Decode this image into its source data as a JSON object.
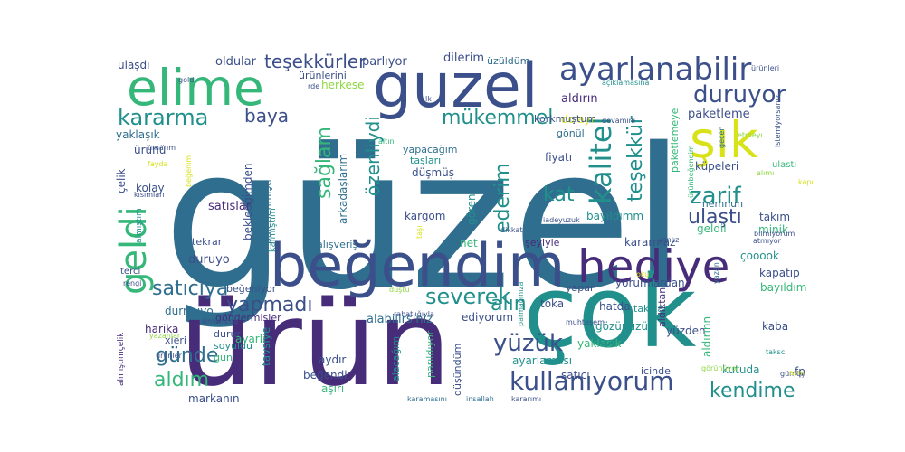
{
  "palette": {
    "dark_purple": "#472c7a",
    "indigo": "#3b4f8a",
    "steel_blue": "#2f6e8e",
    "teal": "#21908c",
    "green": "#35b779",
    "lime": "#8fd744",
    "yellow": "#d8e219",
    "background": "#ffffff"
  },
  "words": [
    {
      "text": "güzel"
    },
    {
      "text": "ürün"
    },
    {
      "text": "çok"
    },
    {
      "text": "beğendim"
    },
    {
      "text": "guzel"
    },
    {
      "text": "elime"
    },
    {
      "text": "şık"
    },
    {
      "text": "hediye"
    },
    {
      "text": "ayarlanabilir"
    },
    {
      "text": "geldi"
    },
    {
      "text": "kalitel"
    },
    {
      "text": "yüzük"
    },
    {
      "text": "kullanıyorum"
    },
    {
      "text": "duruyor"
    },
    {
      "text": "kararma"
    },
    {
      "text": "mükemmel"
    },
    {
      "text": "zarif"
    },
    {
      "text": "severek"
    },
    {
      "text": "teşekkürler"
    },
    {
      "text": "teşekkür"
    },
    {
      "text": "özenliydi"
    },
    {
      "text": "sağlam"
    },
    {
      "text": "ulaştı"
    },
    {
      "text": "satıcıya"
    },
    {
      "text": "yapmadı"
    },
    {
      "text": "günde"
    },
    {
      "text": "aldım"
    },
    {
      "text": "kendime"
    },
    {
      "text": "alın"
    },
    {
      "text": "ederim"
    },
    {
      "text": "kat"
    },
    {
      "text": "baya"
    },
    {
      "text": "oldular"
    },
    {
      "text": "parlıyor"
    },
    {
      "text": "dilerim"
    },
    {
      "text": "üzüldüm"
    },
    {
      "text": "ulaşdı"
    },
    {
      "text": "ürünlerini"
    },
    {
      "text": "herkese"
    },
    {
      "text": "aldırın"
    },
    {
      "text": "dolayı"
    },
    {
      "text": "gönül"
    },
    {
      "text": "korkmuştum"
    },
    {
      "text": "paketleme"
    },
    {
      "text": "paketlemeye"
    },
    {
      "text": "yaklaşık"
    },
    {
      "text": "ürünü"
    },
    {
      "text": "çelik"
    },
    {
      "text": "kolay"
    },
    {
      "text": "satışlar"
    },
    {
      "text": "bekledğimden"
    },
    {
      "text": "paletlenmişti"
    },
    {
      "text": "arkadaşlarım"
    },
    {
      "text": "yapacağım"
    },
    {
      "text": "taşları"
    },
    {
      "text": "düşmüş"
    },
    {
      "text": "fiyatı"
    },
    {
      "text": "küpeleri"
    },
    {
      "text": "takım"
    },
    {
      "text": "memnun"
    },
    {
      "text": "gören"
    },
    {
      "text": "kargom"
    },
    {
      "text": "net"
    },
    {
      "text": "şeyiyle"
    },
    {
      "text": "bayıldımm"
    },
    {
      "text": "kararmaz"
    },
    {
      "text": "geldii"
    },
    {
      "text": "minik"
    },
    {
      "text": "çooook"
    },
    {
      "text": "kapatıp"
    },
    {
      "text": "bayıldım"
    },
    {
      "text": "yorumlardan"
    },
    {
      "text": "yapar"
    },
    {
      "text": "toka"
    },
    {
      "text": "ediyorum"
    },
    {
      "text": "alabilirsiniz"
    },
    {
      "text": "göndermişler"
    },
    {
      "text": "beğeniyor"
    },
    {
      "text": "durmuyo"
    },
    {
      "text": "harika"
    },
    {
      "text": "xleri"
    },
    {
      "text": "durur"
    },
    {
      "text": "soyuldu"
    },
    {
      "text": "gun"
    },
    {
      "text": "ayarlı"
    },
    {
      "text": "tavsiye"
    },
    {
      "text": "aydır"
    },
    {
      "text": "beğendi"
    },
    {
      "text": "aşırı"
    },
    {
      "text": "alacağım"
    },
    {
      "text": "parıldıyor"
    },
    {
      "text": "düşündüm"
    },
    {
      "text": "ayarlaması"
    },
    {
      "text": "satıcı"
    },
    {
      "text": "gözünüzü"
    },
    {
      "text": "yaklasik"
    },
    {
      "text": "hatda"
    },
    {
      "text": "takıcam"
    },
    {
      "text": "yüzden"
    },
    {
      "text": "aldıktan"
    },
    {
      "text": "aldırınn"
    },
    {
      "text": "kutuda"
    },
    {
      "text": "icinde"
    },
    {
      "text": "kaba"
    },
    {
      "text": "fp"
    },
    {
      "text": "gümüş"
    },
    {
      "text": "markanın"
    },
    {
      "text": "karamasını"
    },
    {
      "text": "insallah"
    },
    {
      "text": "kararımı"
    },
    {
      "text": "tekrar"
    },
    {
      "text": "duruyo"
    },
    {
      "text": "kalmıştım"
    },
    {
      "text": "alışveriş"
    },
    {
      "text": "almanızda"
    },
    {
      "text": "rahatlığıyla"
    },
    {
      "text": "terci"
    },
    {
      "text": "rengi"
    },
    {
      "text": "almıştım"
    },
    {
      "text": "almıştımçelik"
    },
    {
      "text": "yazanlar"
    },
    {
      "text": "ürünler"
    },
    {
      "text": "gold"
    },
    {
      "text": "umarım"
    },
    {
      "text": "fayda"
    },
    {
      "text": "kısımları"
    },
    {
      "text": "iade"
    },
    {
      "text": "yuzuk"
    },
    {
      "text": "dikkat"
    },
    {
      "text": "devamını"
    },
    {
      "text": "açıklamasına"
    },
    {
      "text": "ürünleri"
    },
    {
      "text": "rde"
    },
    {
      "text": "lk"
    },
    {
      "text": "altın"
    },
    {
      "text": "istemiyorsanız"
    },
    {
      "text": "ulastı"
    },
    {
      "text": "bilmiyorum"
    },
    {
      "text": "atmıyor"
    },
    {
      "text": "yazan"
    },
    {
      "text": "görünüyor"
    },
    {
      "text": "takscı"
    },
    {
      "text": "muhteşem"
    },
    {
      "text": "düştü"
    },
    {
      "text": "parmağınıza"
    },
    {
      "text": "yanlız"
    },
    {
      "text": "taşı"
    },
    {
      "text": "aynı"
    },
    {
      "text": "kapıma"
    },
    {
      "text": "alımı"
    },
    {
      "text": "geçen"
    },
    {
      "text": "ürünbeğendim"
    },
    {
      "text": "etmeyı"
    },
    {
      "text": "beğenim"
    },
    {
      "text": "oku"
    }
  ]
}
